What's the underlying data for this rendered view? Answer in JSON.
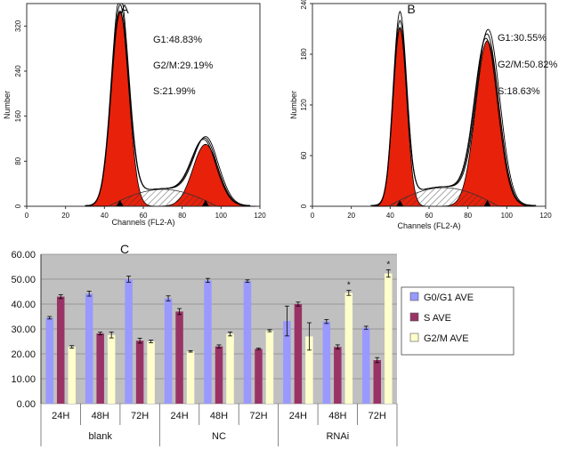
{
  "chart_data": [
    {
      "type": "area",
      "panel_label": "A",
      "xlabel": "Channels (FL2-A)",
      "ylabel": "Number",
      "xlim": [
        0,
        120
      ],
      "ylim": [
        0,
        360
      ],
      "x_ticks": [
        "0",
        "20",
        "40",
        "60",
        "80",
        "100",
        "120"
      ],
      "y_ticks": [
        "0",
        "80",
        "160",
        "240",
        "320"
      ],
      "y_tick_values": [
        0,
        80,
        160,
        240,
        320
      ],
      "annotations": [
        "G1:48.83%",
        "G2/M:29.19%",
        "S:21.99%"
      ],
      "g1_peak": {
        "channel": 48,
        "count": 347,
        "width": 4.5
      },
      "g2m_peak": {
        "channel": 92,
        "count": 110,
        "width": 6.5
      },
      "s_phase": {
        "from": 48,
        "to": 92,
        "max": 30
      },
      "markers": [
        48,
        92
      ]
    },
    {
      "type": "area",
      "panel_label": "B",
      "xlabel": "Channels (FL2-A)",
      "ylabel": "Number",
      "xlim": [
        0,
        120
      ],
      "ylim": [
        0,
        240
      ],
      "x_ticks": [
        "0",
        "20",
        "40",
        "60",
        "80",
        "100",
        "120"
      ],
      "y_ticks": [
        "0",
        "60",
        "120",
        "180",
        "240"
      ],
      "y_tick_values": [
        0,
        60,
        120,
        180,
        240
      ],
      "annotations": [
        "G1:30.55%",
        "G2/M:50.82%",
        "S:18.63%"
      ],
      "g1_peak": {
        "channel": 45,
        "count": 212,
        "width": 3.5
      },
      "g2m_peak": {
        "channel": 90,
        "count": 196,
        "width": 6
      },
      "s_phase": {
        "from": 45,
        "to": 90,
        "max": 22
      },
      "markers": [
        45,
        90
      ]
    },
    {
      "type": "bar",
      "panel_label": "C",
      "title": "",
      "ylim": [
        0,
        60
      ],
      "y_ticks": [
        "0.00",
        "10.00",
        "20.00",
        "30.00",
        "40.00",
        "50.00",
        "60.00"
      ],
      "y_tick_values": [
        0,
        10,
        20,
        30,
        40,
        50,
        60
      ],
      "groups": [
        "blank",
        "NC",
        "RNAi"
      ],
      "categories": [
        "24H",
        "48H",
        "72H",
        "24H",
        "48H",
        "72H",
        "24H",
        "48H",
        "72H"
      ],
      "legend": "right",
      "series": [
        {
          "name": "G0/G1 AVE",
          "color": "#9999ff",
          "values": [
            34.5,
            44.2,
            50.0,
            42.3,
            49.5,
            49.2,
            33.2,
            33.0,
            30.5
          ],
          "errors": [
            0.5,
            1.0,
            1.2,
            1.0,
            0.8,
            0.5,
            6.0,
            0.8,
            0.6
          ]
        },
        {
          "name": "S AVE",
          "color": "#993366",
          "values": [
            43.0,
            28.2,
            25.3,
            37.0,
            23.0,
            22.0,
            40.0,
            22.8,
            17.5
          ],
          "errors": [
            0.8,
            0.5,
            1.0,
            1.2,
            0.6,
            0.3,
            0.8,
            0.8,
            1.0
          ]
        },
        {
          "name": "G2/M AVE",
          "color": "#ffffcc",
          "values": [
            22.8,
            27.6,
            25.0,
            21.0,
            28.0,
            29.3,
            27.0,
            44.5,
            52.3
          ],
          "errors": [
            0.5,
            1.2,
            0.5,
            0.3,
            0.8,
            0.4,
            5.5,
            1.0,
            1.5
          ]
        }
      ],
      "significance": [
        {
          "category_index": 7,
          "series": "G2/M AVE",
          "mark": "*"
        },
        {
          "category_index": 8,
          "series": "G2/M AVE",
          "mark": "*"
        }
      ]
    }
  ]
}
